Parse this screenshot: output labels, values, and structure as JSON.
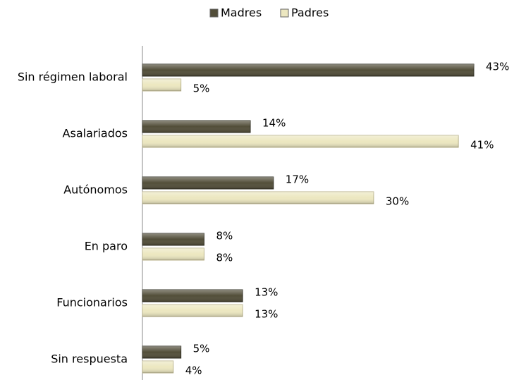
{
  "chart_data": {
    "type": "bar",
    "orientation": "horizontal",
    "categories": [
      "Sin régimen laboral",
      "Asalariados",
      "Autónomos",
      "En paro",
      "Funcionarios",
      "Sin respuesta"
    ],
    "series": [
      {
        "name": "Madres",
        "color": "#524e39",
        "values": [
          43,
          14,
          17,
          8,
          13,
          5
        ],
        "value_labels": [
          "43%",
          "14%",
          "17%",
          "8%",
          "13%",
          "5%"
        ]
      },
      {
        "name": "Padres",
        "color": "#ece7c0",
        "values": [
          5,
          41,
          30,
          8,
          13,
          4
        ],
        "value_labels": [
          "5%",
          "41%",
          "30%",
          "8%",
          "13%",
          "4%"
        ]
      }
    ],
    "legend": "top"
  }
}
